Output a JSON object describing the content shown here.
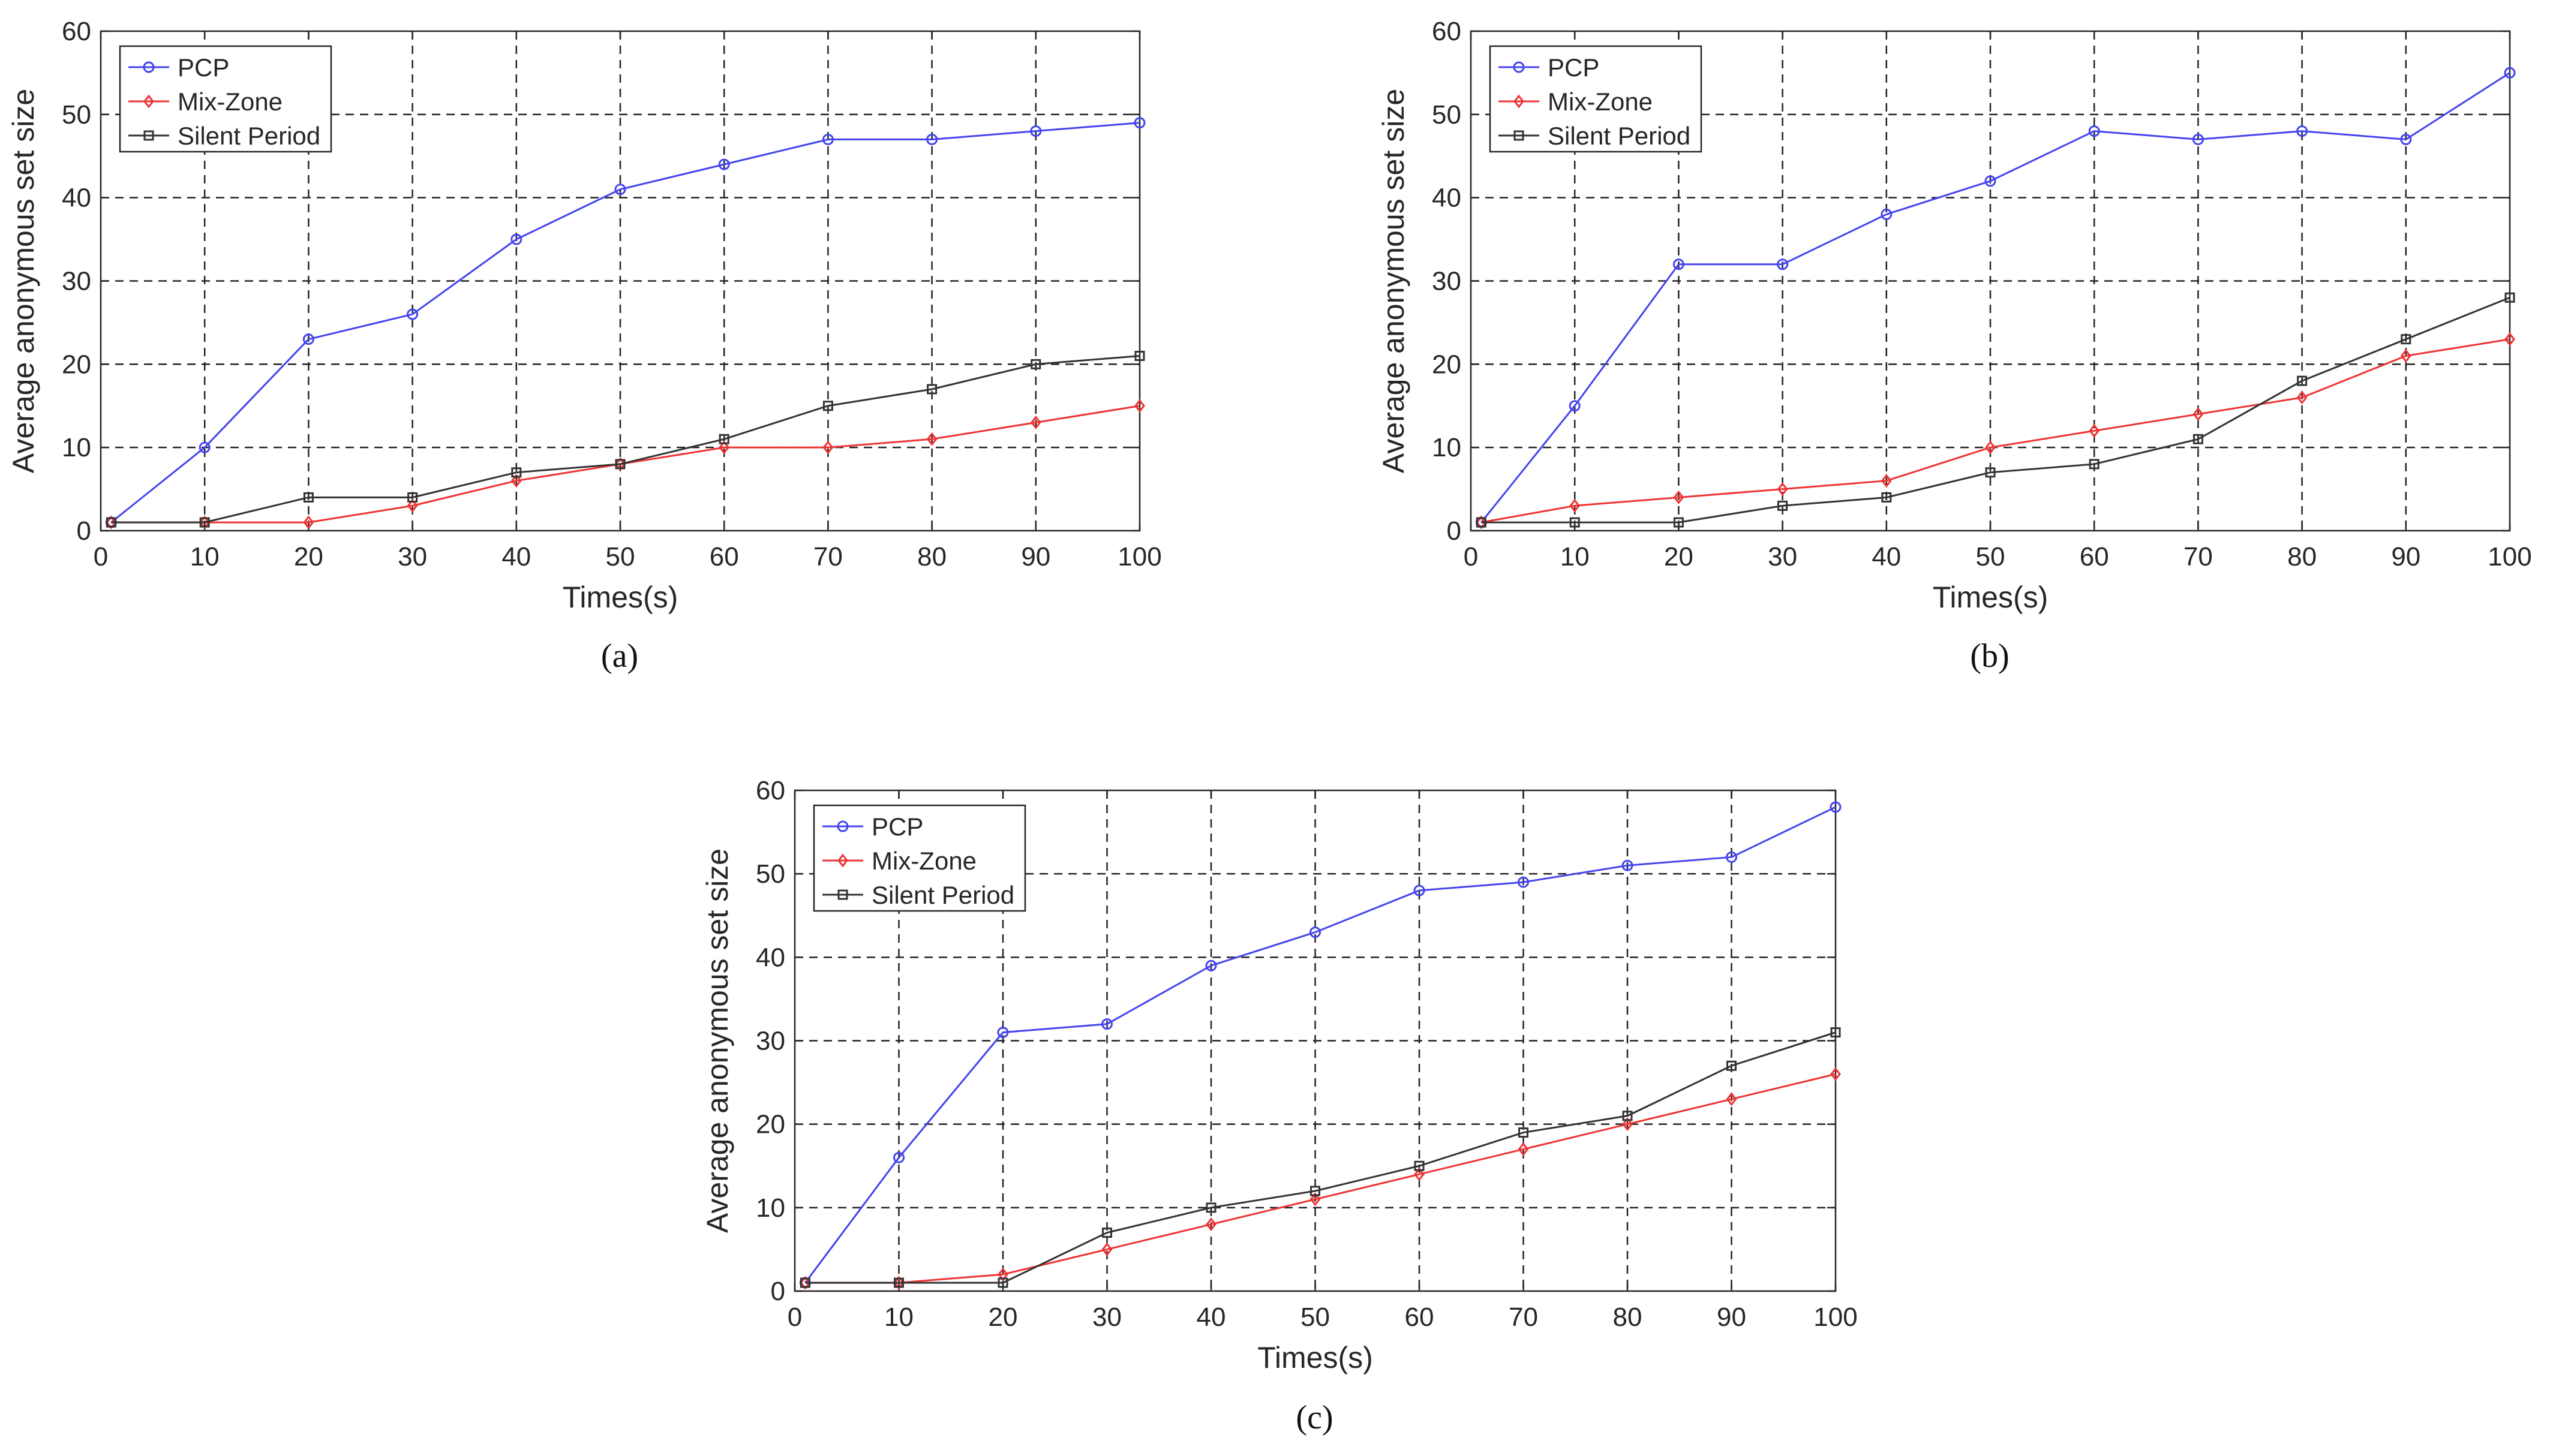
{
  "figure": {
    "panel_labels": [
      "(a)",
      "(b)",
      "(c)"
    ]
  },
  "colors": {
    "PCP": "#4444ee",
    "Mix-Zone": "#ee3333",
    "Silent Period": "#333333",
    "grid": "#222222"
  },
  "chart_data": [
    {
      "type": "line",
      "panel": "(a)",
      "xlabel": "Times(s)",
      "ylabel": "Average anonymous set size",
      "xlim": [
        0,
        100
      ],
      "ylim": [
        0,
        60
      ],
      "xticks": [
        0,
        10,
        20,
        30,
        40,
        50,
        60,
        70,
        80,
        90,
        100
      ],
      "yticks": [
        0,
        10,
        20,
        30,
        40,
        50,
        60
      ],
      "grid": true,
      "legend_position": "top-left",
      "x": [
        1,
        10,
        20,
        30,
        40,
        50,
        60,
        70,
        80,
        90,
        100
      ],
      "series": [
        {
          "name": "PCP",
          "marker": "circle",
          "values": [
            1,
            10,
            23,
            26,
            35,
            41,
            44,
            47,
            47,
            48,
            49
          ]
        },
        {
          "name": "Mix-Zone",
          "marker": "diamond",
          "values": [
            1,
            1,
            1,
            3,
            6,
            8,
            10,
            10,
            11,
            13,
            15
          ]
        },
        {
          "name": "Silent Period",
          "marker": "square",
          "values": [
            1,
            1,
            4,
            4,
            7,
            8,
            11,
            15,
            17,
            20,
            21
          ]
        }
      ]
    },
    {
      "type": "line",
      "panel": "(b)",
      "xlabel": "Times(s)",
      "ylabel": "Average anonymous set size",
      "xlim": [
        0,
        100
      ],
      "ylim": [
        0,
        60
      ],
      "xticks": [
        0,
        10,
        20,
        30,
        40,
        50,
        60,
        70,
        80,
        90,
        100
      ],
      "yticks": [
        0,
        10,
        20,
        30,
        40,
        50,
        60
      ],
      "grid": true,
      "legend_position": "top-left",
      "x": [
        1,
        10,
        20,
        30,
        40,
        50,
        60,
        70,
        80,
        90,
        100
      ],
      "series": [
        {
          "name": "PCP",
          "marker": "circle",
          "values": [
            1,
            15,
            32,
            32,
            38,
            42,
            48,
            47,
            48,
            47,
            55
          ]
        },
        {
          "name": "Mix-Zone",
          "marker": "diamond",
          "values": [
            1,
            3,
            4,
            5,
            6,
            10,
            12,
            14,
            16,
            21,
            23
          ]
        },
        {
          "name": "Silent Period",
          "marker": "square",
          "values": [
            1,
            1,
            1,
            3,
            4,
            7,
            8,
            11,
            18,
            23,
            28
          ]
        }
      ]
    },
    {
      "type": "line",
      "panel": "(c)",
      "xlabel": "Times(s)",
      "ylabel": "Average anonymous set size",
      "xlim": [
        0,
        100
      ],
      "ylim": [
        0,
        60
      ],
      "xticks": [
        0,
        10,
        20,
        30,
        40,
        50,
        60,
        70,
        80,
        90,
        100
      ],
      "yticks": [
        0,
        10,
        20,
        30,
        40,
        50,
        60
      ],
      "grid": true,
      "legend_position": "top-left",
      "x": [
        1,
        10,
        20,
        30,
        40,
        50,
        60,
        70,
        80,
        90,
        100
      ],
      "series": [
        {
          "name": "PCP",
          "marker": "circle",
          "values": [
            1,
            16,
            31,
            32,
            39,
            43,
            48,
            49,
            51,
            52,
            58
          ]
        },
        {
          "name": "Mix-Zone",
          "marker": "diamond",
          "values": [
            1,
            1,
            2,
            5,
            8,
            11,
            14,
            17,
            20,
            23,
            26
          ]
        },
        {
          "name": "Silent Period",
          "marker": "square",
          "values": [
            1,
            1,
            1,
            7,
            10,
            12,
            15,
            19,
            21,
            27,
            31
          ]
        }
      ]
    }
  ]
}
